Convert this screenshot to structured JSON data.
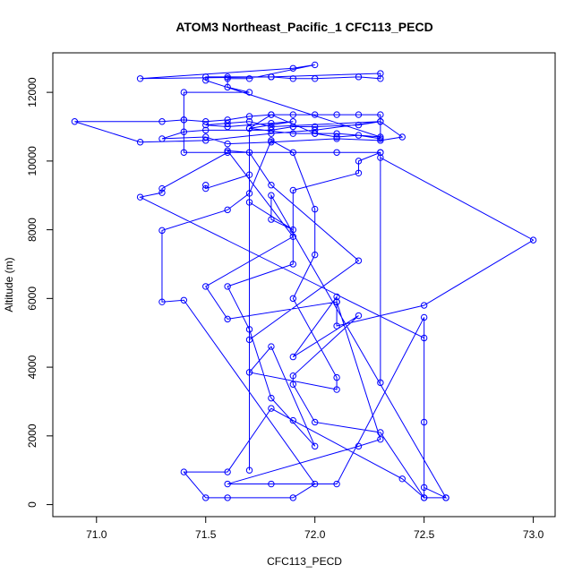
{
  "chart_data": {
    "type": "line",
    "title": "ATOM3 Northeast_Pacific_1 CFC113_PECD",
    "xlabel": "CFC113_PECD",
    "ylabel": "Altitude (m)",
    "xlim": [
      70.8,
      73.1
    ],
    "ylim": [
      -350,
      13150
    ],
    "xticks": [
      71.0,
      71.5,
      72.0,
      72.5,
      73.0
    ],
    "xtick_labels": [
      "71.0",
      "71.5",
      "72.0",
      "72.5",
      "73.0"
    ],
    "yticks": [
      0,
      2000,
      4000,
      6000,
      8000,
      10000,
      12000
    ],
    "ytick_labels": [
      "0",
      "2000",
      "4000",
      "6000",
      "8000",
      "10000",
      "12000"
    ],
    "grid": false,
    "colors": {
      "series": "#0000ff"
    },
    "series": [
      {
        "marker": "open-circle",
        "points": [
          [
            72.6,
            200
          ],
          [
            72.5,
            200
          ],
          [
            72.4,
            750
          ],
          [
            71.9,
            2450
          ],
          [
            71.8,
            2800
          ],
          [
            71.6,
            950
          ],
          [
            71.4,
            950
          ],
          [
            71.5,
            200
          ],
          [
            71.6,
            200
          ],
          [
            71.9,
            200
          ],
          [
            72.0,
            600
          ],
          [
            71.4,
            5950
          ],
          [
            71.3,
            5900
          ],
          [
            71.3,
            7980
          ],
          [
            71.6,
            8580
          ],
          [
            71.7,
            9060
          ],
          [
            71.8,
            10600
          ],
          [
            71.9,
            10250
          ],
          [
            72.0,
            8600
          ],
          [
            72.0,
            7270
          ],
          [
            71.9,
            6000
          ],
          [
            72.1,
            3700
          ],
          [
            72.1,
            3350
          ],
          [
            71.7,
            3850
          ],
          [
            71.8,
            4600
          ],
          [
            72.0,
            1700
          ],
          [
            71.8,
            3100
          ],
          [
            71.7,
            5100
          ],
          [
            71.6,
            6350
          ],
          [
            71.9,
            7000
          ],
          [
            71.9,
            9150
          ],
          [
            72.2,
            9650
          ],
          [
            72.2,
            10000
          ],
          [
            72.3,
            10250
          ],
          [
            72.3,
            3550
          ],
          [
            72.3,
            10100
          ],
          [
            73.0,
            7700
          ],
          [
            72.5,
            5800
          ],
          [
            72.1,
            5200
          ],
          [
            72.1,
            5900
          ],
          [
            71.6,
            5400
          ],
          [
            71.5,
            6350
          ],
          [
            71.9,
            7800
          ],
          [
            71.6,
            10300
          ],
          [
            71.7,
            10250
          ],
          [
            71.8,
            9300
          ],
          [
            72.2,
            7100
          ],
          [
            71.7,
            4800
          ],
          [
            71.7,
            1000
          ],
          [
            71.7,
            10950
          ],
          [
            71.8,
            11350
          ],
          [
            72.0,
            10800
          ],
          [
            72.1,
            10700
          ],
          [
            72.2,
            10750
          ],
          [
            72.3,
            10650
          ],
          [
            72.3,
            11350
          ],
          [
            72.2,
            11350
          ],
          [
            72.1,
            11350
          ],
          [
            72.0,
            11350
          ],
          [
            71.9,
            11350
          ],
          [
            71.8,
            11350
          ],
          [
            71.7,
            11300
          ],
          [
            71.6,
            11200
          ],
          [
            71.5,
            11150
          ],
          [
            71.4,
            11200
          ],
          [
            71.3,
            11150
          ],
          [
            70.9,
            11150
          ],
          [
            71.2,
            10550
          ],
          [
            71.5,
            10600
          ],
          [
            71.8,
            10800
          ],
          [
            72.0,
            10900
          ],
          [
            72.3,
            11150
          ],
          [
            72.4,
            10700
          ],
          [
            72.3,
            10600
          ],
          [
            72.1,
            10650
          ],
          [
            71.8,
            10550
          ],
          [
            71.6,
            10500
          ],
          [
            71.5,
            10700
          ],
          [
            71.3,
            10650
          ],
          [
            71.4,
            10850
          ],
          [
            71.5,
            10900
          ],
          [
            71.8,
            10900
          ],
          [
            71.9,
            11000
          ],
          [
            72.0,
            11000
          ],
          [
            72.2,
            11050
          ],
          [
            72.3,
            11150
          ],
          [
            71.8,
            11000
          ],
          [
            71.7,
            11150
          ],
          [
            71.6,
            11100
          ],
          [
            71.5,
            11050
          ],
          [
            71.6,
            11000
          ],
          [
            71.8,
            11100
          ],
          [
            71.9,
            11150
          ],
          [
            71.7,
            10950
          ],
          [
            71.9,
            10800
          ],
          [
            72.0,
            10800
          ],
          [
            72.1,
            10800
          ],
          [
            72.3,
            10700
          ],
          [
            71.5,
            12350
          ],
          [
            71.5,
            12450
          ],
          [
            71.6,
            12450
          ],
          [
            71.8,
            12450
          ],
          [
            71.9,
            12400
          ],
          [
            72.0,
            12400
          ],
          [
            72.2,
            12450
          ],
          [
            72.3,
            12400
          ],
          [
            72.3,
            12550
          ],
          [
            71.8,
            12450
          ],
          [
            71.2,
            12400
          ],
          [
            71.9,
            12700
          ],
          [
            72.0,
            12800
          ],
          [
            71.7,
            12400
          ],
          [
            71.6,
            12400
          ],
          [
            71.6,
            12150
          ],
          [
            71.7,
            12000
          ],
          [
            71.4,
            12000
          ],
          [
            71.4,
            11200
          ],
          [
            71.4,
            10250
          ],
          [
            72.3,
            10250
          ],
          [
            72.1,
            10250
          ],
          [
            71.6,
            10250
          ],
          [
            71.3,
            9200
          ],
          [
            71.3,
            9080
          ],
          [
            71.2,
            8950
          ],
          [
            72.5,
            4850
          ],
          [
            72.5,
            2400
          ],
          [
            72.5,
            200
          ],
          [
            72.3,
            2100
          ],
          [
            72.0,
            2400
          ],
          [
            71.9,
            3500
          ],
          [
            71.9,
            3750
          ],
          [
            72.2,
            5500
          ],
          [
            71.9,
            4300
          ],
          [
            72.1,
            6050
          ],
          [
            72.1,
            5900
          ],
          [
            72.3,
            1900
          ],
          [
            72.2,
            1700
          ],
          [
            71.6,
            600
          ],
          [
            71.8,
            600
          ],
          [
            72.1,
            600
          ],
          [
            72.5,
            5450
          ],
          [
            72.5,
            500
          ],
          [
            72.6,
            200
          ],
          [
            71.8,
            9000
          ],
          [
            71.8,
            8300
          ],
          [
            71.9,
            8000
          ],
          [
            71.7,
            8800
          ],
          [
            71.7,
            9600
          ],
          [
            71.5,
            9200
          ],
          [
            71.5,
            9300
          ]
        ]
      }
    ]
  }
}
